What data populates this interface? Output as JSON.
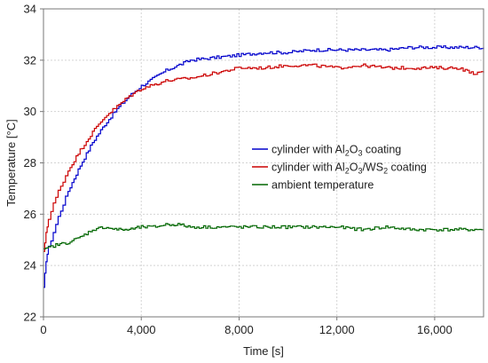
{
  "chart_data": {
    "type": "line",
    "xlabel": "Time [s]",
    "ylabel": "Temperature [°C]",
    "xlim": [
      0,
      18000
    ],
    "ylim": [
      22,
      34
    ],
    "x_ticks": [
      0,
      4000,
      8000,
      12000,
      16000
    ],
    "x_tick_labels": [
      "0",
      "4,000",
      "8,000",
      "12,000",
      "16,000"
    ],
    "y_ticks": [
      22,
      24,
      26,
      28,
      30,
      32,
      34
    ],
    "y_tick_labels": [
      "22",
      "24",
      "26",
      "28",
      "30",
      "32",
      "34"
    ],
    "grid": true,
    "legend_position": "center-right",
    "series": [
      {
        "name": "cylinder with Al2O3 coating",
        "legend_parts": [
          [
            "cylinder with Al",
            ""
          ],
          [
            "2",
            "sub"
          ],
          [
            "O",
            ""
          ],
          [
            "3",
            "sub"
          ],
          [
            " coating",
            ""
          ]
        ],
        "color": "#0000cc",
        "x": [
          0,
          100,
          200,
          400,
          600,
          800,
          1000,
          1500,
          2000,
          2500,
          3000,
          3500,
          4000,
          5000,
          6000,
          7000,
          8000,
          9000,
          10000,
          11000,
          12000,
          13000,
          14000,
          15000,
          16000,
          17000,
          18000
        ],
        "y": [
          23.1,
          24.2,
          24.7,
          25.3,
          25.9,
          26.4,
          26.9,
          27.9,
          28.8,
          29.5,
          30.1,
          30.6,
          31.0,
          31.6,
          32.0,
          32.1,
          32.2,
          32.3,
          32.3,
          32.4,
          32.4,
          32.4,
          32.4,
          32.5,
          32.5,
          32.5,
          32.5
        ]
      },
      {
        "name": "cylinder with Al2O3/WS2 coating",
        "legend_parts": [
          [
            "cylinder with Al",
            ""
          ],
          [
            "2",
            "sub"
          ],
          [
            "O",
            ""
          ],
          [
            "3",
            "sub"
          ],
          [
            "/WS",
            ""
          ],
          [
            "2",
            "sub"
          ],
          [
            " coating",
            ""
          ]
        ],
        "color": "#cc0000",
        "x": [
          0,
          100,
          200,
          400,
          600,
          800,
          1000,
          1500,
          2000,
          2500,
          3000,
          3500,
          4000,
          5000,
          6000,
          7000,
          8000,
          9000,
          10000,
          11000,
          12000,
          13000,
          14000,
          15000,
          16000,
          17000,
          17500,
          18000
        ],
        "y": [
          24.5,
          25.3,
          25.8,
          26.4,
          26.9,
          27.3,
          27.7,
          28.5,
          29.2,
          29.8,
          30.2,
          30.6,
          30.9,
          31.2,
          31.3,
          31.5,
          31.7,
          31.7,
          31.8,
          31.8,
          31.7,
          31.8,
          31.7,
          31.7,
          31.7,
          31.7,
          31.5,
          31.5
        ]
      },
      {
        "name": "ambient temperature",
        "legend_parts": [
          [
            "ambient temperature",
            ""
          ]
        ],
        "color": "#006600",
        "x": [
          0,
          200,
          500,
          1000,
          1500,
          2000,
          2500,
          3000,
          3500,
          4000,
          4500,
          5000,
          5500,
          6000,
          7000,
          8000,
          9000,
          10000,
          11000,
          12000,
          13000,
          14000,
          15000,
          16000,
          17000,
          18000
        ],
        "y": [
          24.6,
          24.7,
          24.8,
          24.9,
          25.1,
          25.4,
          25.5,
          25.4,
          25.4,
          25.5,
          25.5,
          25.6,
          25.6,
          25.5,
          25.5,
          25.5,
          25.5,
          25.5,
          25.5,
          25.5,
          25.4,
          25.5,
          25.4,
          25.4,
          25.4,
          25.4
        ]
      }
    ]
  }
}
